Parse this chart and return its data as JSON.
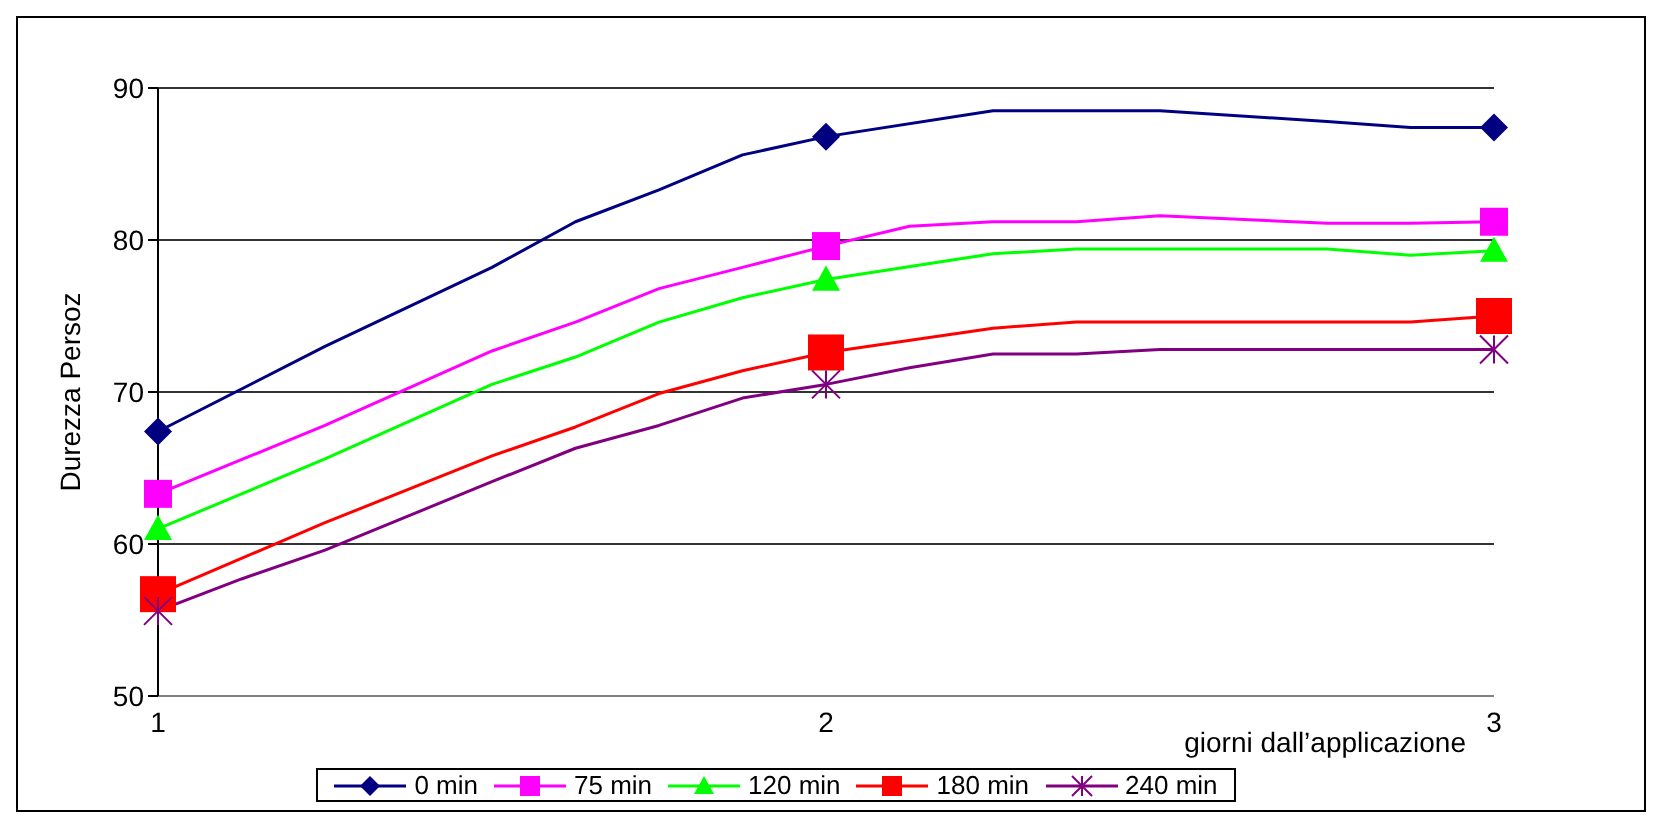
{
  "chart_data": {
    "type": "line",
    "ylabel": "Durezza Persoz",
    "xlabel": "giorni dall’applicazione",
    "xlim": [
      1,
      3
    ],
    "xticks": [
      1,
      2,
      3
    ],
    "ylim": [
      50,
      90
    ],
    "yticks": [
      50,
      60,
      70,
      80,
      90
    ],
    "grid": "y",
    "legend": "bottom",
    "series": [
      {
        "name": "0 min",
        "color": "#000080",
        "marker": "none",
        "x": [
          1,
          1.25,
          1.5,
          1.625,
          1.75,
          1.875,
          2,
          2.25,
          2.375,
          2.5,
          2.75,
          2.875,
          3
        ],
        "values": [
          67.4,
          73.0,
          78.2,
          81.2,
          83.3,
          85.6,
          86.8,
          88.5,
          88.5,
          88.5,
          87.8,
          87.4,
          87.4
        ]
      },
      {
        "name": "75 min",
        "color": "#ff00ff",
        "marker": "none",
        "x": [
          1,
          1.25,
          1.5,
          1.625,
          1.75,
          1.875,
          2,
          2.125,
          2.25,
          2.375,
          2.5,
          2.75,
          2.875,
          3
        ],
        "values": [
          63.3,
          67.8,
          72.7,
          74.6,
          76.8,
          78.2,
          79.6,
          80.9,
          81.2,
          81.2,
          81.6,
          81.1,
          81.1,
          81.2
        ]
      },
      {
        "name": "120 min",
        "color": "#00ff00",
        "marker": "none",
        "x": [
          1,
          1.25,
          1.5,
          1.625,
          1.75,
          1.875,
          2,
          2.25,
          2.375,
          2.5,
          2.75,
          2.875,
          3
        ],
        "values": [
          61.0,
          65.6,
          70.5,
          72.3,
          74.6,
          76.2,
          77.4,
          79.1,
          79.4,
          79.4,
          79.4,
          79.0,
          79.3
        ]
      },
      {
        "name": "180 min",
        "color": "#ff0000",
        "marker": "none",
        "x": [
          1,
          1.25,
          1.5,
          1.625,
          1.75,
          1.875,
          2,
          2.25,
          2.375,
          2.5,
          2.75,
          2.875,
          3
        ],
        "values": [
          56.7,
          61.4,
          65.8,
          67.7,
          69.9,
          71.4,
          72.6,
          74.2,
          74.6,
          74.6,
          74.6,
          74.6,
          75.0
        ]
      },
      {
        "name": "240 min",
        "color": "#800080",
        "marker": "none",
        "x": [
          1,
          1.125,
          1.25,
          1.5,
          1.625,
          1.75,
          1.875,
          2,
          2.125,
          2.25,
          2.375,
          2.5,
          2.75,
          2.875,
          3
        ],
        "values": [
          55.6,
          57.7,
          59.6,
          64.1,
          66.3,
          67.8,
          69.6,
          70.5,
          71.6,
          72.5,
          72.5,
          72.8,
          72.8,
          72.8,
          72.8
        ]
      },
      {
        "type": "scatter",
        "color": "#000080",
        "marker": "diamond",
        "x": [
          1,
          2,
          3
        ],
        "values": [
          67.4,
          86.8,
          87.4
        ]
      },
      {
        "type": "scatter",
        "color": "#ff00ff",
        "marker": "square",
        "x": [
          1,
          2,
          3
        ],
        "values": [
          63.3,
          79.6,
          81.2
        ]
      },
      {
        "type": "scatter",
        "color": "#00ff00",
        "marker": "triangle",
        "x": [
          1,
          2,
          3
        ],
        "values": [
          61.0,
          77.4,
          79.3
        ]
      },
      {
        "type": "scatter",
        "color": "#ff0000",
        "marker": "square",
        "x": [
          1,
          2,
          3
        ],
        "values": [
          56.7,
          72.6,
          75.0
        ]
      },
      {
        "type": "scatter",
        "color": "#800080",
        "marker": "cross",
        "x": [
          1,
          2,
          3
        ],
        "values": [
          55.6,
          70.5,
          72.8
        ]
      }
    ]
  }
}
